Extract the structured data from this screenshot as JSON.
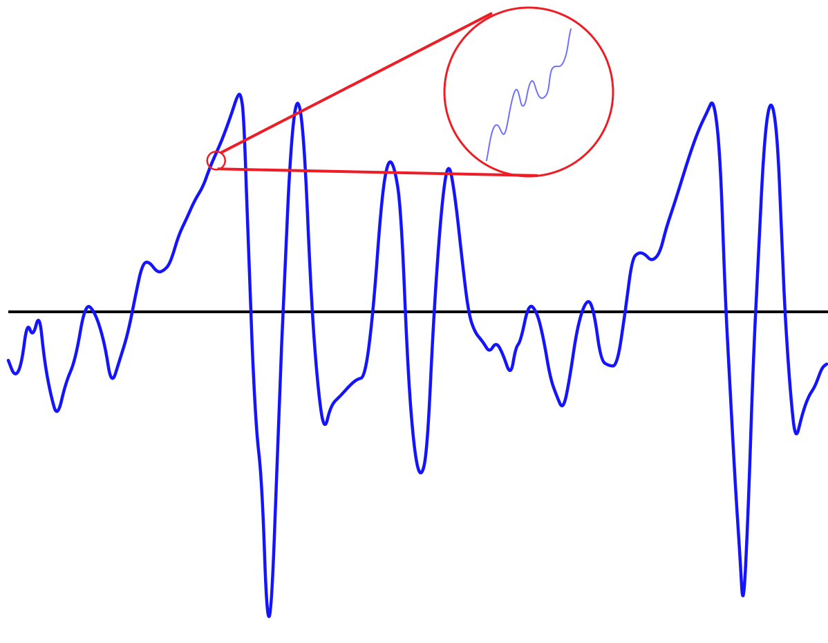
{
  "chart_data": {
    "type": "line",
    "title": "",
    "xlabel": "",
    "ylabel": "",
    "grid": false,
    "legend": "none",
    "baseline_value": 0,
    "colors": {
      "signal": "#1414ff",
      "baseline": "#000000",
      "highlight": "#ee1c25",
      "zoom_signal": "#6f6fff"
    },
    "series": [
      {
        "points": [
          [
            0,
            -0.26
          ],
          [
            0.8,
            -0.35
          ],
          [
            1.6,
            -0.29
          ],
          [
            2.3,
            -0.05
          ],
          [
            3.0,
            -0.14
          ],
          [
            3.8,
            0.0
          ],
          [
            4.4,
            -0.26
          ],
          [
            5.2,
            -0.45
          ],
          [
            6.0,
            -0.57
          ],
          [
            7.0,
            -0.38
          ],
          [
            8.2,
            -0.26
          ],
          [
            9.4,
            0.05
          ],
          [
            10.6,
            0.0
          ],
          [
            11.8,
            -0.17
          ],
          [
            12.6,
            -0.4
          ],
          [
            13.6,
            -0.26
          ],
          [
            14.6,
            -0.12
          ],
          [
            15.6,
            0.1
          ],
          [
            16.4,
            0.26
          ],
          [
            17.2,
            0.27
          ],
          [
            18.2,
            0.21
          ],
          [
            19.0,
            0.22
          ],
          [
            19.8,
            0.26
          ],
          [
            20.8,
            0.41
          ],
          [
            21.8,
            0.5
          ],
          [
            22.8,
            0.6
          ],
          [
            23.8,
            0.67
          ],
          [
            24.6,
            0.77
          ],
          [
            25.4,
            0.85
          ],
          [
            26.2,
            0.93
          ],
          [
            27.2,
            1.05
          ],
          [
            28.0,
            1.16
          ],
          [
            28.4,
            1.17
          ],
          [
            28.8,
            1.05
          ],
          [
            29.4,
            0.25
          ],
          [
            30.2,
            -0.6
          ],
          [
            31.0,
            -0.9
          ],
          [
            31.6,
            -1.66
          ],
          [
            32.2,
            -1.6
          ],
          [
            33.0,
            -0.6
          ],
          [
            33.8,
            0.25
          ],
          [
            34.6,
            0.95
          ],
          [
            35.4,
            1.18
          ],
          [
            36.2,
            0.9
          ],
          [
            37.0,
            0.08
          ],
          [
            37.8,
            -0.4
          ],
          [
            38.6,
            -0.65
          ],
          [
            39.4,
            -0.5
          ],
          [
            40.6,
            -0.45
          ],
          [
            41.6,
            -0.4
          ],
          [
            42.6,
            -0.36
          ],
          [
            43.6,
            -0.35
          ],
          [
            44.6,
            0.0
          ],
          [
            45.6,
            0.6
          ],
          [
            46.4,
            0.82
          ],
          [
            47.2,
            0.78
          ],
          [
            48.0,
            0.55
          ],
          [
            48.8,
            -0.3
          ],
          [
            49.6,
            -0.75
          ],
          [
            50.4,
            -0.9
          ],
          [
            51.2,
            -0.75
          ],
          [
            52.0,
            0.0
          ],
          [
            53.0,
            0.6
          ],
          [
            53.8,
            0.82
          ],
          [
            54.6,
            0.62
          ],
          [
            55.4,
            0.3
          ],
          [
            56.2,
            0.0
          ],
          [
            57.0,
            -0.11
          ],
          [
            58.0,
            -0.16
          ],
          [
            58.8,
            -0.22
          ],
          [
            59.6,
            -0.16
          ],
          [
            60.4,
            -0.22
          ],
          [
            61.4,
            -0.35
          ],
          [
            62.0,
            -0.19
          ],
          [
            62.6,
            -0.16
          ],
          [
            63.6,
            0.05
          ],
          [
            64.6,
            0.0
          ],
          [
            65.4,
            -0.14
          ],
          [
            66.2,
            -0.35
          ],
          [
            67.0,
            -0.45
          ],
          [
            67.8,
            -0.53
          ],
          [
            68.6,
            -0.36
          ],
          [
            69.6,
            -0.06
          ],
          [
            70.8,
            0.08
          ],
          [
            71.6,
            0.0
          ],
          [
            72.4,
            -0.26
          ],
          [
            73.4,
            -0.29
          ],
          [
            74.4,
            -0.29
          ],
          [
            75.4,
            0.0
          ],
          [
            76.2,
            0.28
          ],
          [
            77.0,
            0.32
          ],
          [
            77.8,
            0.31
          ],
          [
            78.6,
            0.27
          ],
          [
            79.6,
            0.31
          ],
          [
            80.4,
            0.45
          ],
          [
            81.4,
            0.58
          ],
          [
            82.4,
            0.72
          ],
          [
            83.4,
            0.86
          ],
          [
            84.4,
            0.98
          ],
          [
            85.4,
            1.07
          ],
          [
            86.2,
            1.15
          ],
          [
            87.0,
            0.85
          ],
          [
            87.6,
            0.08
          ],
          [
            88.2,
            -0.4
          ],
          [
            88.8,
            -0.9
          ],
          [
            89.4,
            -1.3
          ],
          [
            89.8,
            -1.62
          ],
          [
            90.4,
            -1.1
          ],
          [
            91.0,
            -0.3
          ],
          [
            91.6,
            0.25
          ],
          [
            92.4,
            0.95
          ],
          [
            93.2,
            1.16
          ],
          [
            94.0,
            0.95
          ],
          [
            94.6,
            0.3
          ],
          [
            95.0,
            -0.08
          ],
          [
            95.6,
            -0.45
          ],
          [
            96.2,
            -0.7
          ],
          [
            97.0,
            -0.55
          ],
          [
            97.8,
            -0.45
          ],
          [
            98.6,
            -0.4
          ],
          [
            99.4,
            -0.3
          ],
          [
            100,
            -0.28
          ]
        ]
      }
    ],
    "annotations": [
      {
        "type": "zoom-inset",
        "target_point": [
          25.4,
          0.81
        ]
      }
    ]
  }
}
